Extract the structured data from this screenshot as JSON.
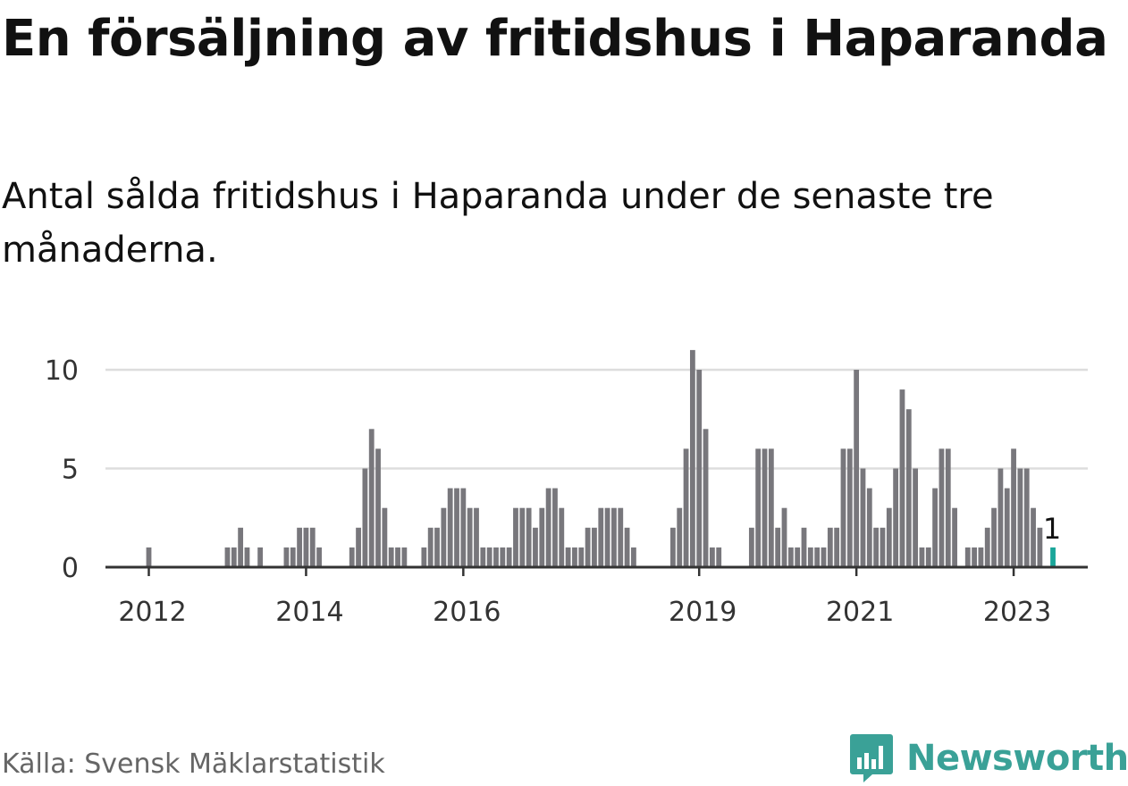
{
  "title": "En försäljning av fritidshus i Haparanda",
  "subtitle": "Antal sålda fritidshus i Haparanda under de senaste tre månaderna.",
  "source": "Källa: Svensk Mäklarstatistik",
  "brand": {
    "name": "Newsworthy",
    "icon": "newsworthy-logo-icon",
    "color": "#3aa197"
  },
  "chart_data": {
    "type": "bar",
    "x_start": "2012-01",
    "x_end": "2023-04",
    "x_ticks": [
      "2012",
      "2014",
      "2016",
      "2019",
      "2021",
      "2023"
    ],
    "y_ticks": [
      "0",
      "5",
      "10"
    ],
    "ylim": [
      0,
      11
    ],
    "grid": true,
    "colors": {
      "bar": "#78777c",
      "highlight": "#1aa69a",
      "grid": "#dddddd",
      "axis": "#333333",
      "tick_text": "#333333"
    },
    "values": [
      1,
      0,
      0,
      0,
      0,
      0,
      0,
      0,
      0,
      0,
      0,
      0,
      1,
      1,
      2,
      1,
      0,
      1,
      0,
      0,
      0,
      1,
      1,
      2,
      2,
      2,
      1,
      0,
      0,
      0,
      0,
      1,
      2,
      5,
      7,
      6,
      3,
      1,
      1,
      1,
      0,
      0,
      1,
      2,
      2,
      3,
      4,
      4,
      4,
      3,
      3,
      1,
      1,
      1,
      1,
      1,
      3,
      3,
      3,
      2,
      3,
      4,
      4,
      3,
      1,
      1,
      1,
      2,
      2,
      3,
      3,
      3,
      3,
      2,
      1,
      0,
      0,
      0,
      0,
      0,
      2,
      3,
      6,
      11,
      10,
      7,
      1,
      1,
      0,
      0,
      0,
      0,
      2,
      6,
      6,
      6,
      2,
      3,
      1,
      1,
      2,
      1,
      1,
      1,
      2,
      2,
      6,
      6,
      10,
      5,
      4,
      2,
      2,
      3,
      5,
      9,
      8,
      5,
      1,
      1,
      4,
      6,
      6,
      3,
      0,
      1,
      1,
      1,
      2,
      3,
      5,
      4,
      6,
      5,
      5,
      3,
      2,
      0,
      1
    ],
    "highlight_label": "1"
  }
}
